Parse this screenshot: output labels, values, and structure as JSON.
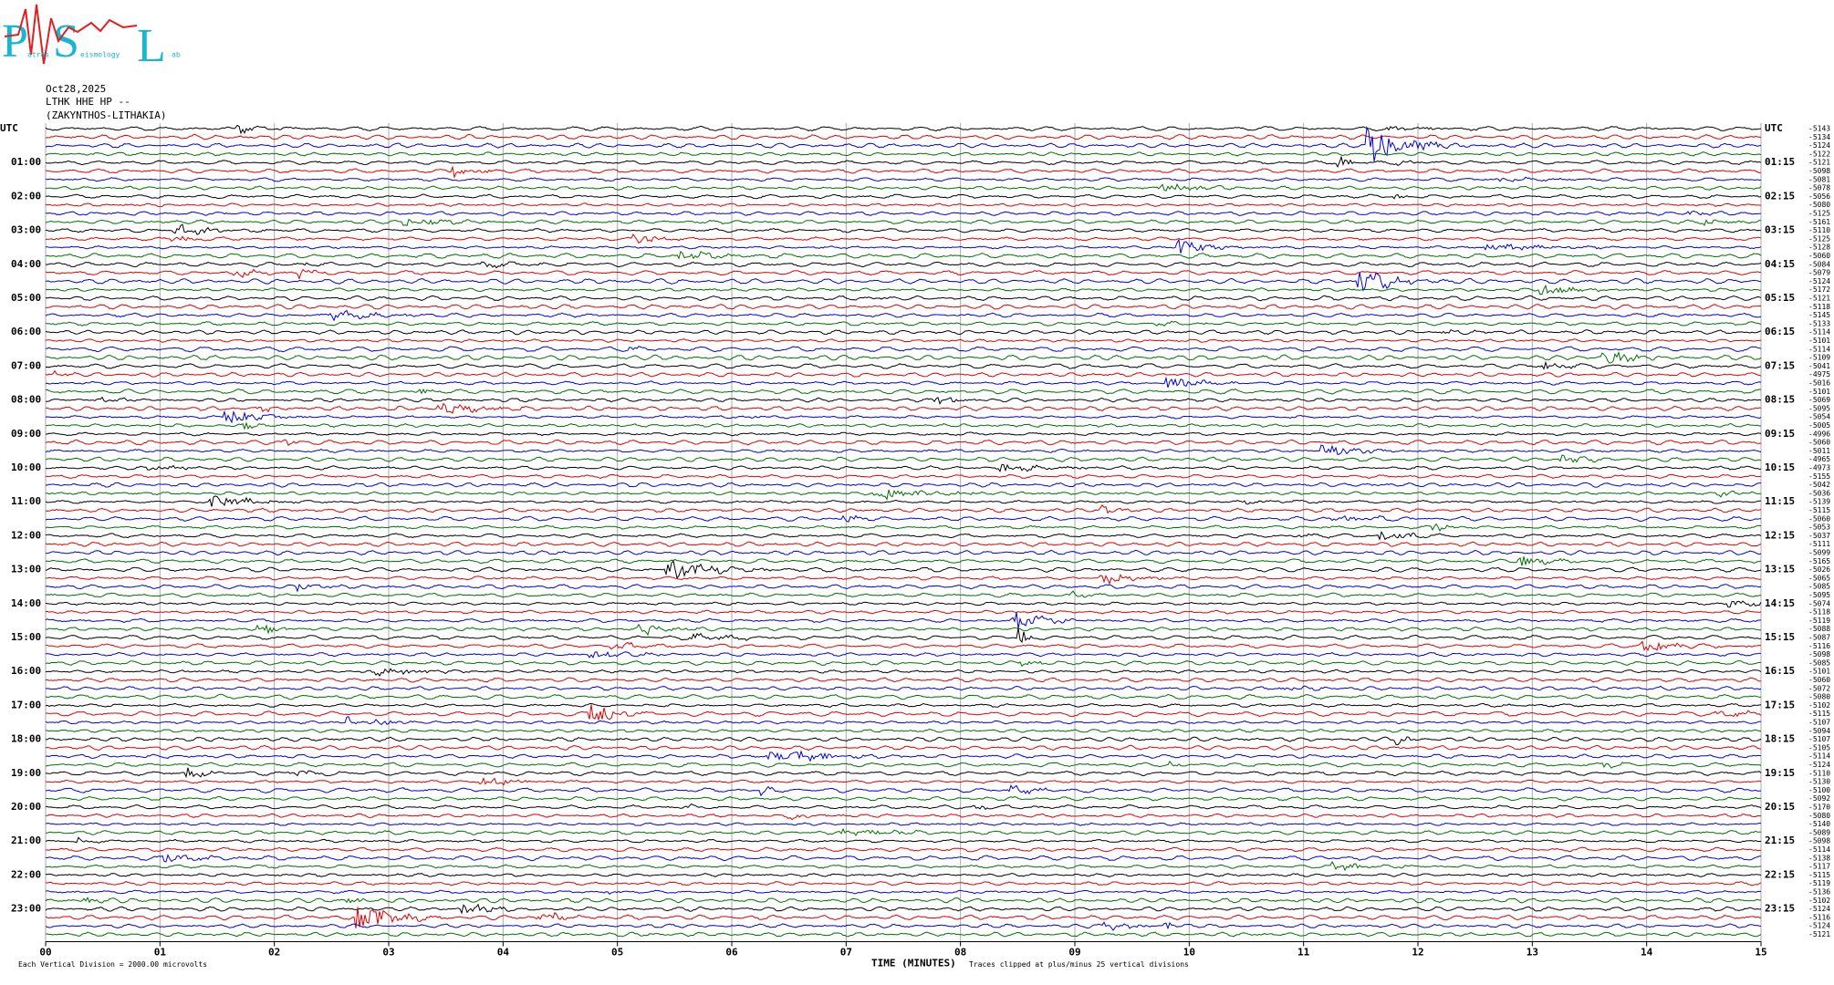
{
  "header": {
    "logo_letters": [
      "P",
      "S",
      "L"
    ],
    "logo_words": [
      "atras",
      "eismology",
      "ab"
    ],
    "date": "Oct28,2025",
    "station": "LTHK HHE HP --",
    "location": "(ZAKYNTHOS-LITHAKIA)"
  },
  "chart_data": {
    "type": "helicorder",
    "colors": [
      "#000000",
      "#e00000",
      "#0000e0",
      "#007000"
    ],
    "left_labels": [
      "UTC",
      "01:00",
      "02:00",
      "03:00",
      "04:00",
      "05:00",
      "06:00",
      "07:00",
      "08:00",
      "09:00",
      "10:00",
      "11:00",
      "12:00",
      "13:00",
      "14:00",
      "15:00",
      "16:00",
      "17:00",
      "18:00",
      "19:00",
      "20:00",
      "21:00",
      "22:00",
      "23:00"
    ],
    "right_labels": [
      "UTC",
      "01:15",
      "02:15",
      "03:15",
      "04:15",
      "05:15",
      "06:15",
      "07:15",
      "08:15",
      "09:15",
      "10:15",
      "11:15",
      "12:15",
      "13:15",
      "14:15",
      "15:15",
      "16:15",
      "17:15",
      "18:15",
      "19:15",
      "20:15",
      "21:15",
      "22:15",
      "23:15"
    ],
    "row_offsets": [
      -5143,
      -5134,
      -5124,
      -5122,
      -5121,
      -5098,
      -5081,
      -5078,
      -5056,
      -5080,
      -5125,
      -5161,
      -5110,
      -5125,
      -5128,
      -5060,
      -5084,
      -5079,
      -5124,
      -5172,
      -5121,
      -5118,
      -5145,
      -5133,
      -5114,
      -5101,
      -5114,
      -5109,
      -5041,
      -4975,
      -5016,
      -5101,
      -5069,
      -5095,
      -5054,
      -5005,
      -4996,
      -5060,
      -5011,
      -4965,
      -4973,
      -5155,
      -5042,
      -5036,
      -5139,
      -5115,
      -5060,
      -5053,
      -5037,
      -5111,
      -5099,
      -5165,
      -5026,
      -5065,
      -5085,
      -5095,
      -5074,
      -5118,
      -5119,
      -5088,
      -5087,
      -5116,
      -5098,
      -5085,
      -5101,
      -5060,
      -5072,
      -5080,
      -5102,
      -5115,
      -5107,
      -5094,
      -5107,
      -5105,
      -5114,
      -5124,
      -5110,
      -5130,
      -5100,
      -5092,
      -5170,
      -5080,
      -5140,
      -5089,
      -5098,
      -5114,
      -5138,
      -5117,
      -5115,
      -5119,
      -5136,
      -5102,
      -5124,
      -5116,
      -5124,
      -5121
    ],
    "xlim": [
      0,
      15
    ],
    "xticks": [
      {
        "value": 0,
        "label": "00"
      },
      {
        "value": 1,
        "label": "01"
      },
      {
        "value": 2,
        "label": "02"
      },
      {
        "value": 3,
        "label": "03"
      },
      {
        "value": 4,
        "label": "04"
      },
      {
        "value": 5,
        "label": "05"
      },
      {
        "value": 6,
        "label": "06"
      },
      {
        "value": 7,
        "label": "07"
      },
      {
        "value": 8,
        "label": "08"
      },
      {
        "value": 9,
        "label": "09"
      },
      {
        "value": 10,
        "label": "10"
      },
      {
        "value": 11,
        "label": "11"
      },
      {
        "value": 12,
        "label": "12"
      },
      {
        "value": 13,
        "label": "13"
      },
      {
        "value": 14,
        "label": "14"
      },
      {
        "value": 15,
        "label": "15"
      }
    ],
    "x_label": "TIME (MINUTES)",
    "scale_note": "Each Vertical Division = 2000.00 microvolts",
    "clip_note": "Traces clipped at plus/minus 25 vertical divisions",
    "grid": true
  }
}
